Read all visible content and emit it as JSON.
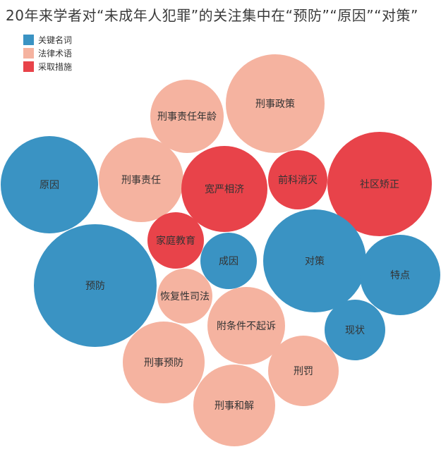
{
  "chart_data": {
    "type": "bubble",
    "title": "20年来学者对“未成年人犯罪”的关注集中在“预防”“原因”“对策”",
    "legend": [
      {
        "name": "关键名词",
        "color": "#3a93c3"
      },
      {
        "name": "法律术语",
        "color": "#f5b3a0"
      },
      {
        "name": "采取措施",
        "color": "#e8434a"
      }
    ],
    "legend_position": "top-left",
    "bubbles": [
      {
        "label": "刑事政策",
        "category": "法律术语"
      },
      {
        "label": "刑事责任年龄",
        "category": "法律术语"
      },
      {
        "label": "原因",
        "category": "关键名词"
      },
      {
        "label": "刑事责任",
        "category": "法律术语"
      },
      {
        "label": "宽严相济",
        "category": "采取措施"
      },
      {
        "label": "前科消灭",
        "category": "采取措施"
      },
      {
        "label": "社区矫正",
        "category": "采取措施"
      },
      {
        "label": "家庭教育",
        "category": "采取措施"
      },
      {
        "label": "成因",
        "category": "关键名词"
      },
      {
        "label": "对策",
        "category": "关键名词"
      },
      {
        "label": "特点",
        "category": "关键名词"
      },
      {
        "label": "预防",
        "category": "关键名词"
      },
      {
        "label": "恢复性司法",
        "category": "法律术语"
      },
      {
        "label": "附条件不起诉",
        "category": "法律术语"
      },
      {
        "label": "现状",
        "category": "关键名词"
      },
      {
        "label": "刑事预防",
        "category": "法律术语"
      },
      {
        "label": "刑罚",
        "category": "法律术语"
      },
      {
        "label": "刑事和解",
        "category": "法律术语"
      }
    ]
  }
}
